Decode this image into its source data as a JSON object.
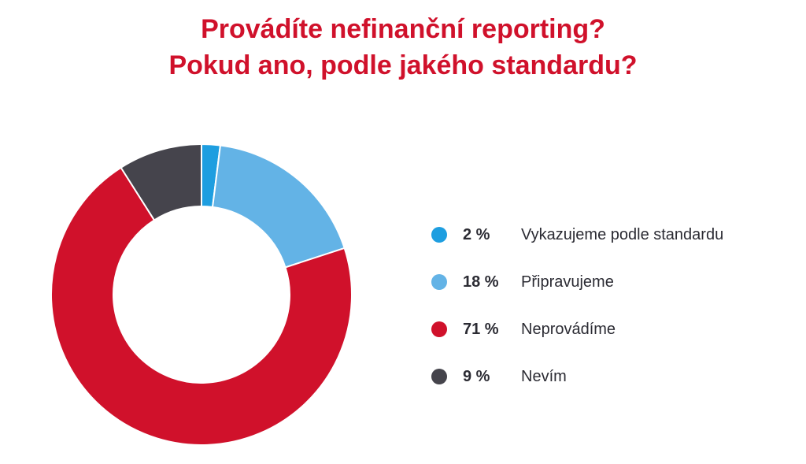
{
  "title": {
    "line1": "Provádíte nefinanční reporting?",
    "line2": "Pokud ano, podle jakého standardu?"
  },
  "chart_data": {
    "type": "pie",
    "variant": "donut",
    "title": "Provádíte nefinanční reporting? Pokud ano, podle jakého standardu?",
    "legend_placement": "right",
    "slices": [
      {
        "label": "Vykazujeme podle standardu",
        "value": 2,
        "value_label": "2 %",
        "color": "#1e9ee0"
      },
      {
        "label": "Připravujeme",
        "value": 18,
        "value_label": "18 %",
        "color": "#63b3e6"
      },
      {
        "label": "Neprovádíme",
        "value": 71,
        "value_label": "71 %",
        "color": "#d0112b"
      },
      {
        "label": "Nevím",
        "value": 9,
        "value_label": "9 %",
        "color": "#45444c"
      }
    ]
  }
}
